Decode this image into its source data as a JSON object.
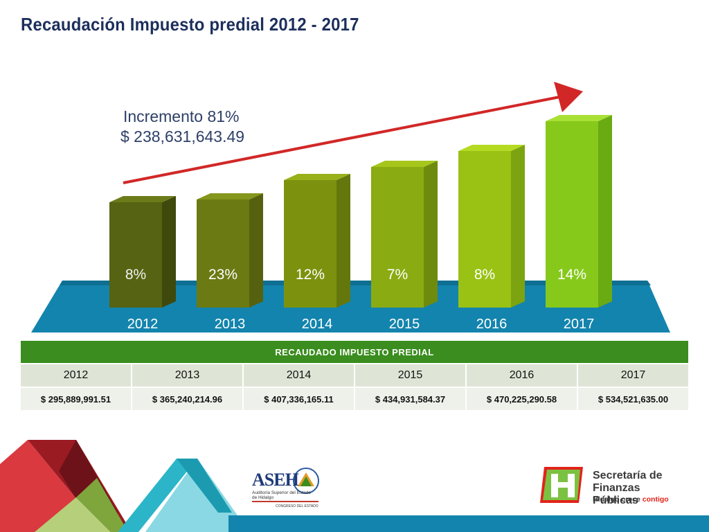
{
  "title": "Recaudación Impuesto predial 2012 - 2017",
  "annotation": {
    "line1": "Incremento 81%",
    "line2": "$ 238,631,643.49"
  },
  "chart_data": {
    "type": "bar",
    "categories": [
      "2012",
      "2013",
      "2014",
      "2015",
      "2016",
      "2017"
    ],
    "values": [
      295889991.51,
      365240214.96,
      407336165.11,
      434931584.37,
      470225290.58,
      534521635.0
    ],
    "bar_labels": [
      "8%",
      "23%",
      "12%",
      "7%",
      "8%",
      "14%"
    ],
    "bar_colors": [
      "#566312",
      "#6b7a13",
      "#7c920f",
      "#8aab12",
      "#99c214",
      "#86c91b"
    ],
    "bar_side_colors": [
      "#3f490c",
      "#55610e",
      "#64770c",
      "#6f8b0e",
      "#7ba410",
      "#6aaa12"
    ],
    "bar_top_colors": [
      "#6c7b1a",
      "#85961c",
      "#98b019",
      "#a7c61b",
      "#b5da22",
      "#a9e035"
    ],
    "trend_arrow": true,
    "ylim": [
      0,
      560000000
    ],
    "xlabel": "",
    "ylabel": ""
  },
  "table": {
    "header": "RECAUDADO IMPUESTO PREDIAL",
    "years": [
      "2012",
      "2013",
      "2014",
      "2015",
      "2016",
      "2017"
    ],
    "values": [
      "$ 295,889,991.51",
      "$ 365,240,214.96",
      "$ 407,336,165.11",
      "$ 434,931,584.37",
      "$ 470,225,290.58",
      "$ 534,521,635.00"
    ]
  },
  "logos": {
    "aseh": {
      "name": "ASEH",
      "subtitle": "Auditoría Superior del Estado de Hidalgo",
      "tagline": "CONGRESO DEL ESTADO"
    },
    "sfp": {
      "line1": "Secretaría de",
      "line2": "Finanzas Públicas",
      "tagline_main": "Hidalgo crece ",
      "tagline_accent": "contigo"
    }
  },
  "colors": {
    "title": "#1c2f5c",
    "floor": "#1384ad",
    "arrow": "#d22727",
    "table_header": "#3a8d1e"
  }
}
